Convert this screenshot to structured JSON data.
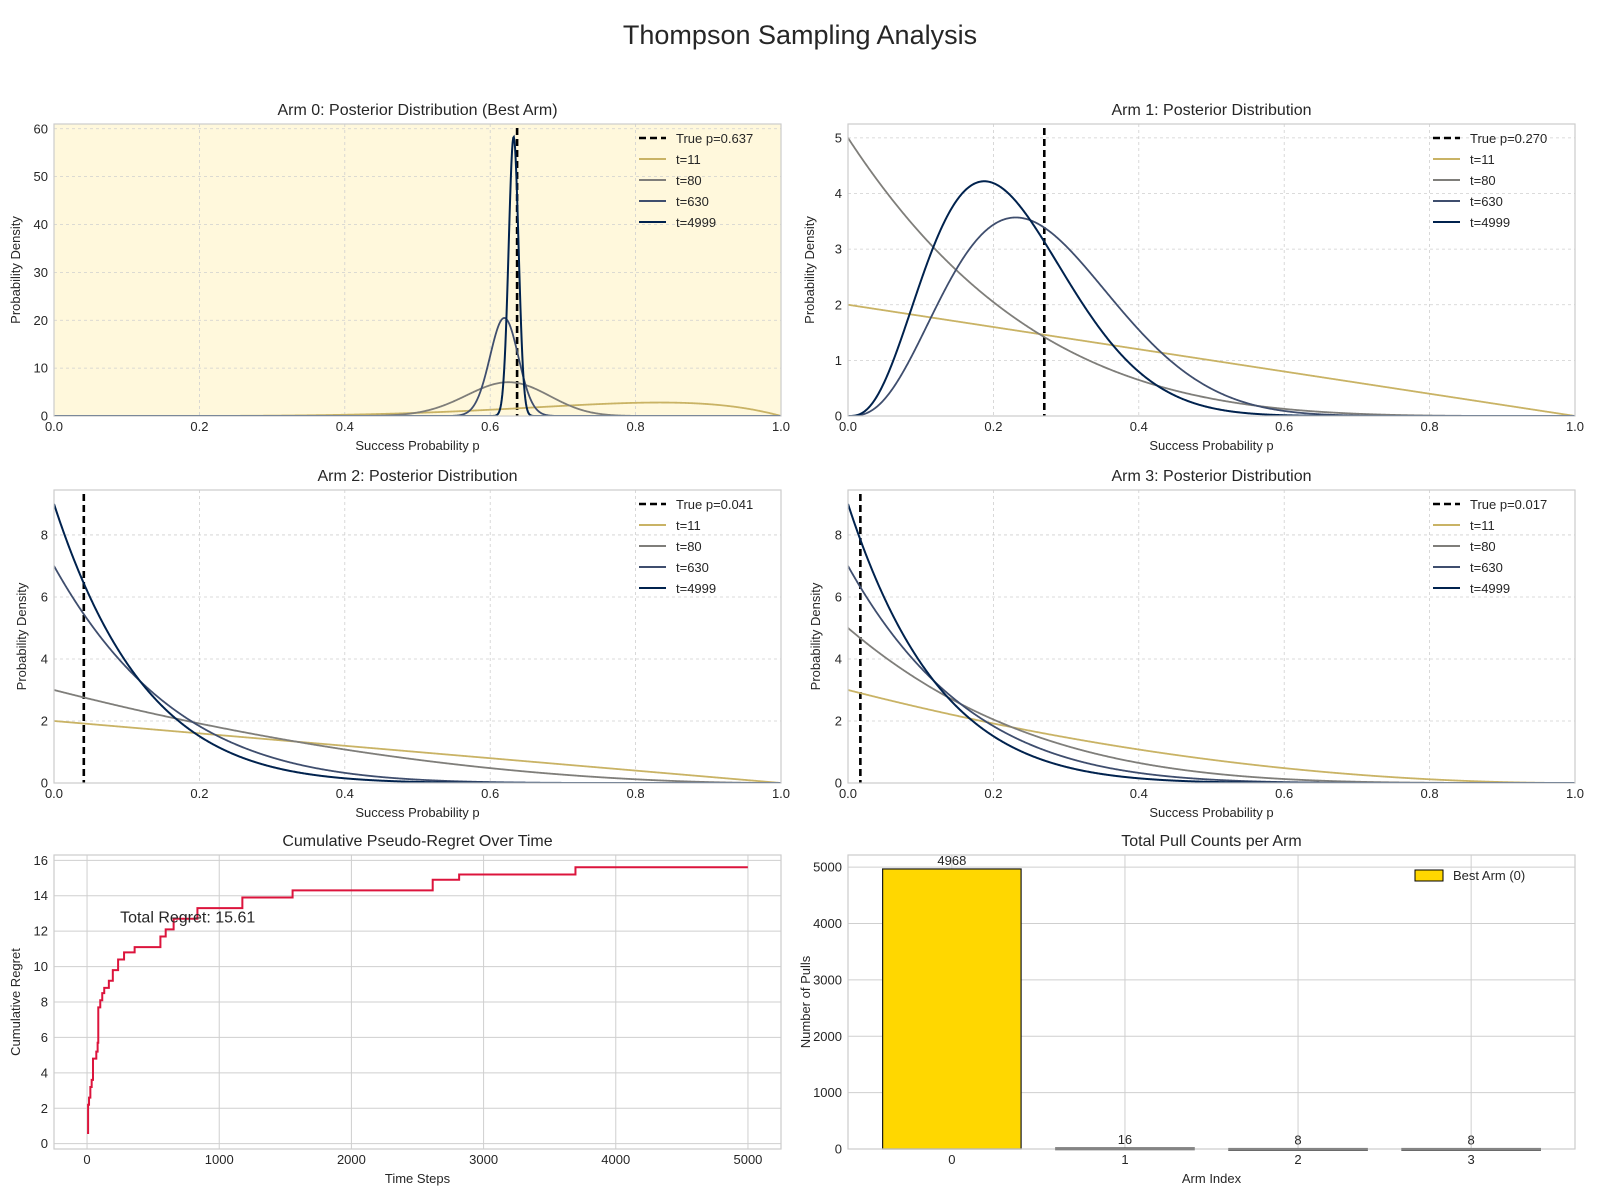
{
  "figure": {
    "title": "Thompson Sampling Analysis"
  },
  "colors": {
    "t11": "#c9b365",
    "t80": "#7f7e7a",
    "t630": "#3f4e6e",
    "t4999": "#00224e",
    "true_line": "#000000",
    "best_arm_bg": "#fff8dc",
    "regret_line": "#dc143c",
    "best_bar": "#ffd700",
    "grid": "#cfcfcf",
    "spine": "#cccccc"
  },
  "chart_data": [
    {
      "id": "arm0",
      "type": "line",
      "title": "Arm 0: Posterior Distribution (Best Arm)",
      "xlabel": "Success Probability p",
      "ylabel": "Probability Density",
      "xlim": [
        0,
        1
      ],
      "ylim": [
        0,
        61
      ],
      "xticks": [
        0.0,
        0.2,
        0.4,
        0.6,
        0.8,
        1.0
      ],
      "xtick_labels": [
        "0.0",
        "0.2",
        "0.4",
        "0.6",
        "0.8",
        "1.0"
      ],
      "yticks": [
        0,
        10,
        20,
        30,
        40,
        50,
        60
      ],
      "ytick_labels": [
        "0",
        "10",
        "20",
        "30",
        "40",
        "50",
        "60"
      ],
      "highlight_background": true,
      "grid": true,
      "legend_position": "top-right",
      "true_p": 0.637,
      "true_label": "True p=0.637",
      "series": [
        {
          "name": "t=11",
          "distribution": "beta",
          "alpha": 6,
          "beta": 2,
          "color_key": "t11"
        },
        {
          "name": "t=80",
          "distribution": "beta",
          "alpha": 46,
          "beta": 28,
          "color_key": "t80"
        },
        {
          "name": "t=630",
          "distribution": "beta",
          "alpha": 385,
          "beta": 237,
          "color_key": "t630"
        },
        {
          "name": "t=4999",
          "distribution": "beta",
          "alpha": 3142,
          "beta": 1828,
          "color_key": "t4999"
        }
      ]
    },
    {
      "id": "arm1",
      "type": "line",
      "title": "Arm 1: Posterior Distribution",
      "xlabel": "Success Probability p",
      "ylabel": "Probability Density",
      "xlim": [
        0,
        1
      ],
      "ylim": [
        0,
        5.25
      ],
      "xticks": [
        0.0,
        0.2,
        0.4,
        0.6,
        0.8,
        1.0
      ],
      "xtick_labels": [
        "0.0",
        "0.2",
        "0.4",
        "0.6",
        "0.8",
        "1.0"
      ],
      "yticks": [
        0,
        1,
        2,
        3,
        4,
        5
      ],
      "ytick_labels": [
        "0",
        "1",
        "2",
        "3",
        "4",
        "5"
      ],
      "highlight_background": false,
      "grid": true,
      "legend_position": "top-right",
      "true_p": 0.27,
      "true_label": "True p=0.270",
      "series": [
        {
          "name": "t=11",
          "distribution": "beta",
          "alpha": 1,
          "beta": 2,
          "color_key": "t11"
        },
        {
          "name": "t=80",
          "distribution": "beta",
          "alpha": 1,
          "beta": 5,
          "color_key": "t80"
        },
        {
          "name": "t=630",
          "distribution": "beta",
          "alpha": 4,
          "beta": 11,
          "color_key": "t630"
        },
        {
          "name": "t=4999",
          "distribution": "beta",
          "alpha": 4,
          "beta": 14,
          "color_key": "t4999"
        }
      ]
    },
    {
      "id": "arm2",
      "type": "line",
      "title": "Arm 2: Posterior Distribution",
      "xlabel": "Success Probability p",
      "ylabel": "Probability Density",
      "xlim": [
        0,
        1
      ],
      "ylim": [
        0,
        9.45
      ],
      "xticks": [
        0.0,
        0.2,
        0.4,
        0.6,
        0.8,
        1.0
      ],
      "xtick_labels": [
        "0.0",
        "0.2",
        "0.4",
        "0.6",
        "0.8",
        "1.0"
      ],
      "yticks": [
        0,
        2,
        4,
        6,
        8
      ],
      "ytick_labels": [
        "0",
        "2",
        "4",
        "6",
        "8"
      ],
      "highlight_background": false,
      "grid": true,
      "legend_position": "top-right",
      "true_p": 0.041,
      "true_label": "True p=0.041",
      "series": [
        {
          "name": "t=11",
          "distribution": "beta",
          "alpha": 1,
          "beta": 2,
          "color_key": "t11"
        },
        {
          "name": "t=80",
          "distribution": "beta",
          "alpha": 1,
          "beta": 3,
          "color_key": "t80"
        },
        {
          "name": "t=630",
          "distribution": "beta",
          "alpha": 1,
          "beta": 7,
          "color_key": "t630"
        },
        {
          "name": "t=4999",
          "distribution": "beta",
          "alpha": 1,
          "beta": 9,
          "color_key": "t4999"
        }
      ]
    },
    {
      "id": "arm3",
      "type": "line",
      "title": "Arm 3: Posterior Distribution",
      "xlabel": "Success Probability p",
      "ylabel": "Probability Density",
      "xlim": [
        0,
        1
      ],
      "ylim": [
        0,
        9.45
      ],
      "xticks": [
        0.0,
        0.2,
        0.4,
        0.6,
        0.8,
        1.0
      ],
      "xtick_labels": [
        "0.0",
        "0.2",
        "0.4",
        "0.6",
        "0.8",
        "1.0"
      ],
      "yticks": [
        0,
        2,
        4,
        6,
        8
      ],
      "ytick_labels": [
        "0",
        "2",
        "4",
        "6",
        "8"
      ],
      "highlight_background": false,
      "grid": true,
      "legend_position": "top-right",
      "true_p": 0.017,
      "true_label": "True p=0.017",
      "series": [
        {
          "name": "t=11",
          "distribution": "beta",
          "alpha": 1,
          "beta": 3,
          "color_key": "t11"
        },
        {
          "name": "t=80",
          "distribution": "beta",
          "alpha": 1,
          "beta": 5,
          "color_key": "t80"
        },
        {
          "name": "t=630",
          "distribution": "beta",
          "alpha": 1,
          "beta": 7,
          "color_key": "t630"
        },
        {
          "name": "t=4999",
          "distribution": "beta",
          "alpha": 1,
          "beta": 9,
          "color_key": "t4999"
        }
      ]
    },
    {
      "id": "regret",
      "type": "line",
      "step": true,
      "title": "Cumulative Pseudo-Regret Over Time",
      "xlabel": "Time Steps",
      "ylabel": "Cumulative Regret",
      "xlim": [
        -250,
        5250
      ],
      "ylim": [
        -0.3,
        16.3
      ],
      "xticks": [
        0,
        1000,
        2000,
        3000,
        4000,
        5000
      ],
      "xtick_labels": [
        "0",
        "1000",
        "2000",
        "3000",
        "4000",
        "5000"
      ],
      "yticks": [
        0,
        2,
        4,
        6,
        8,
        10,
        12,
        14,
        16
      ],
      "ytick_labels": [
        "0",
        "2",
        "4",
        "6",
        "8",
        "10",
        "12",
        "14",
        "16"
      ],
      "grid": true,
      "annotation": {
        "text": "Total Regret: 15.61",
        "x": 250,
        "y": 12.5
      },
      "x": [
        0,
        8,
        15,
        25,
        35,
        45,
        70,
        80,
        85,
        100,
        115,
        130,
        165,
        195,
        235,
        280,
        360,
        555,
        595,
        655,
        835,
        1175,
        1555,
        2615,
        2815,
        3695,
        4999
      ],
      "values": [
        0.6,
        2.2,
        2.6,
        3.2,
        3.6,
        4.8,
        5.2,
        5.7,
        7.7,
        8.1,
        8.5,
        8.8,
        9.2,
        9.8,
        10.4,
        10.8,
        11.1,
        11.7,
        12.1,
        12.7,
        13.3,
        13.9,
        14.3,
        14.9,
        15.2,
        15.61,
        15.61
      ],
      "series_name": "Cumulative Regret",
      "color_key": "regret_line"
    },
    {
      "id": "pulls",
      "type": "bar",
      "title": "Total Pull Counts per Arm",
      "xlabel": "Arm Index",
      "ylabel": "Number of Pulls",
      "categories": [
        "0",
        "1",
        "2",
        "3"
      ],
      "values": [
        4968,
        16,
        8,
        8
      ],
      "value_labels": [
        "4968",
        "16",
        "8",
        "8"
      ],
      "ylim": [
        0,
        5216
      ],
      "yticks": [
        0,
        1000,
        2000,
        3000,
        4000,
        5000
      ],
      "ytick_labels": [
        "0",
        "1000",
        "2000",
        "3000",
        "4000",
        "5000"
      ],
      "grid": true,
      "legend_position": "top-right",
      "legend": [
        {
          "label": "Best Arm (0)",
          "color_key": "best_bar"
        }
      ],
      "best_index": 0
    }
  ]
}
